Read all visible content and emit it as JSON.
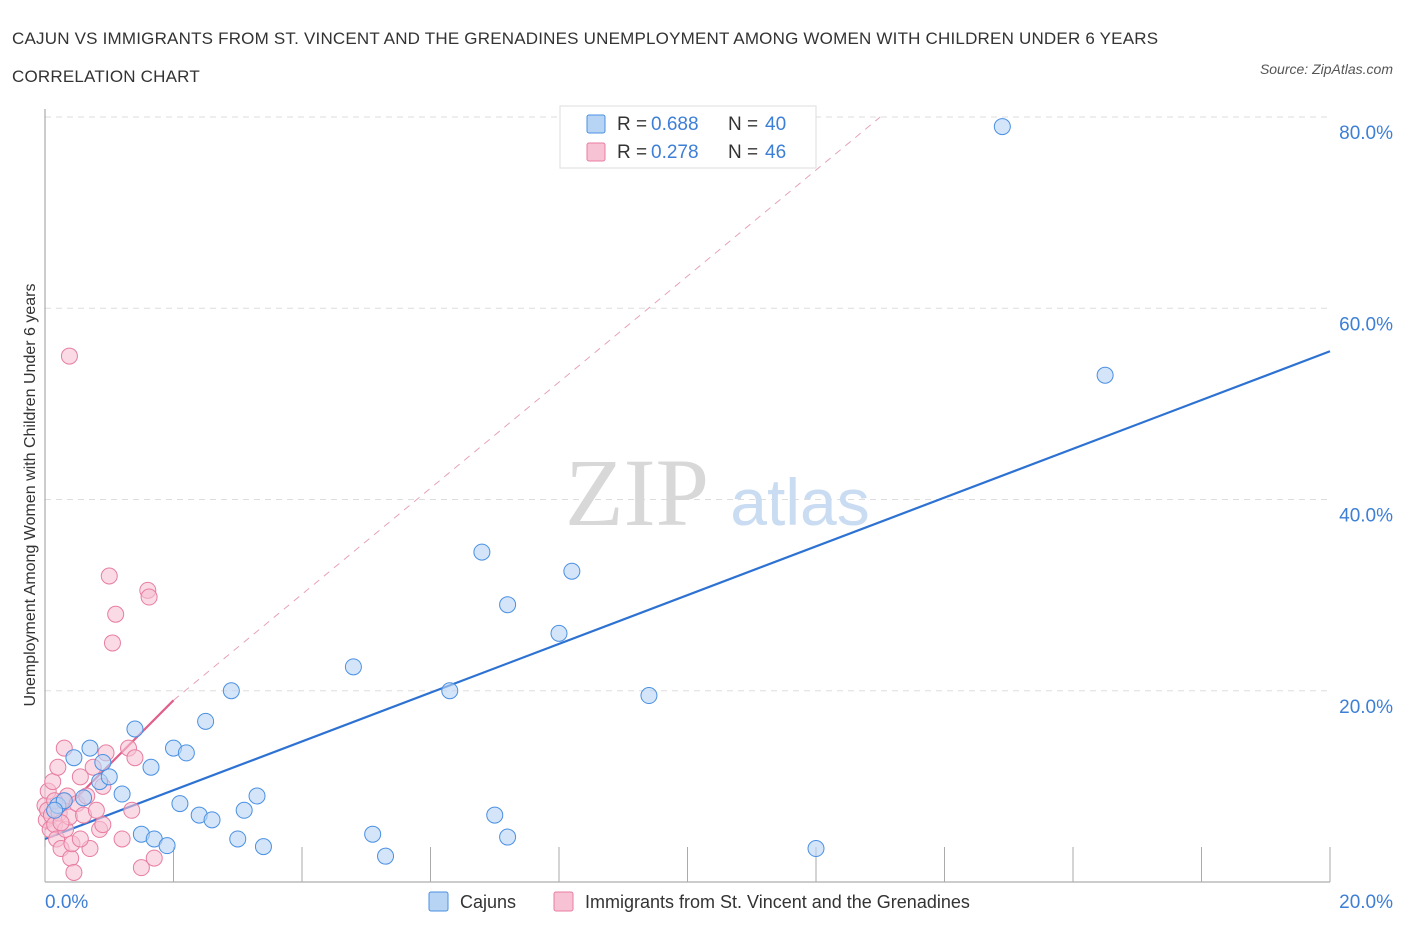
{
  "title": "CAJUN VS IMMIGRANTS FROM ST. VINCENT AND THE GRENADINES UNEMPLOYMENT AMONG WOMEN WITH CHILDREN UNDER 6 YEARS CORRELATION CHART",
  "source": "Source: ZipAtlas.com",
  "watermark": {
    "zip": "ZIP",
    "atlas": "atlas"
  },
  "colors": {
    "blue": "#4a90e2",
    "blue_fill": "#b8d4f5",
    "blue_line": "#2d72d2",
    "pink": "#e87da0",
    "pink_fill": "#f7c2d3",
    "pink_line": "#e0608a",
    "grid": "#dddddd",
    "axis_text": "#3d7fd6"
  },
  "legend": {
    "r_label": "R =",
    "n_label": "N =",
    "rows": [
      {
        "r": "0.688",
        "n": "40"
      },
      {
        "r": "0.278",
        "n": "46"
      }
    ]
  },
  "chart_data": {
    "type": "scatter",
    "title": "CAJUN VS IMMIGRANTS FROM ST. VINCENT AND THE GRENADINES UNEMPLOYMENT AMONG WOMEN WITH CHILDREN UNDER 6 YEARS CORRELATION CHART",
    "xlabel": "",
    "ylabel": "Unemployment Among Women with Children Under 6 years",
    "xlim": [
      0,
      20
    ],
    "ylim": [
      0,
      80
    ],
    "x_tick_labels": [
      "0.0%",
      "20.0%"
    ],
    "y_tick_labels": [
      "20.0%",
      "40.0%",
      "60.0%",
      "80.0%"
    ],
    "y_ticks": [
      20,
      40,
      60,
      80
    ],
    "legend_position": "bottom",
    "series": [
      {
        "name": "Cajuns",
        "color": "#4a90e2",
        "points": [
          [
            0.2,
            8.0
          ],
          [
            0.3,
            8.5
          ],
          [
            0.45,
            13.0
          ],
          [
            0.6,
            8.8
          ],
          [
            0.7,
            14.0
          ],
          [
            0.85,
            10.5
          ],
          [
            1.0,
            11.0
          ],
          [
            1.2,
            9.2
          ],
          [
            1.4,
            16.0
          ],
          [
            1.5,
            5.0
          ],
          [
            1.65,
            12.0
          ],
          [
            1.7,
            4.5
          ],
          [
            1.9,
            3.8
          ],
          [
            2.0,
            14.0
          ],
          [
            2.1,
            8.2
          ],
          [
            2.2,
            13.5
          ],
          [
            2.4,
            7.0
          ],
          [
            2.5,
            16.8
          ],
          [
            2.6,
            6.5
          ],
          [
            2.9,
            20.0
          ],
          [
            3.0,
            4.5
          ],
          [
            3.1,
            7.5
          ],
          [
            3.3,
            9.0
          ],
          [
            3.4,
            3.7
          ],
          [
            4.8,
            22.5
          ],
          [
            5.1,
            5.0
          ],
          [
            5.3,
            2.7
          ],
          [
            6.3,
            20.0
          ],
          [
            6.8,
            34.5
          ],
          [
            7.0,
            7.0
          ],
          [
            7.2,
            29.0
          ],
          [
            7.2,
            4.7
          ],
          [
            8.0,
            26.0
          ],
          [
            8.2,
            32.5
          ],
          [
            9.4,
            19.5
          ],
          [
            12.0,
            3.5
          ],
          [
            14.9,
            79.0
          ],
          [
            16.5,
            53.0
          ],
          [
            0.15,
            7.5
          ],
          [
            0.9,
            12.5
          ]
        ]
      },
      {
        "name": "Immigrants from St. Vincent and the Grenadines",
        "color": "#e87da0",
        "points": [
          [
            0.0,
            8.0
          ],
          [
            0.02,
            6.5
          ],
          [
            0.04,
            7.5
          ],
          [
            0.05,
            9.5
          ],
          [
            0.08,
            5.5
          ],
          [
            0.1,
            7.0
          ],
          [
            0.12,
            10.5
          ],
          [
            0.15,
            6.0
          ],
          [
            0.18,
            4.5
          ],
          [
            0.2,
            12.0
          ],
          [
            0.22,
            7.2
          ],
          [
            0.25,
            3.5
          ],
          [
            0.28,
            8.5
          ],
          [
            0.3,
            14.0
          ],
          [
            0.32,
            5.5
          ],
          [
            0.35,
            9.0
          ],
          [
            0.38,
            6.8
          ],
          [
            0.4,
            2.5
          ],
          [
            0.42,
            4.0
          ],
          [
            0.45,
            1.0
          ],
          [
            0.5,
            8.2
          ],
          [
            0.55,
            11.0
          ],
          [
            0.6,
            7.0
          ],
          [
            0.65,
            9.0
          ],
          [
            0.7,
            3.5
          ],
          [
            0.75,
            12.0
          ],
          [
            0.8,
            7.5
          ],
          [
            0.85,
            5.5
          ],
          [
            0.9,
            6.0
          ],
          [
            0.95,
            13.5
          ],
          [
            1.0,
            32.0
          ],
          [
            1.05,
            25.0
          ],
          [
            1.1,
            28.0
          ],
          [
            1.2,
            4.5
          ],
          [
            1.3,
            14.0
          ],
          [
            1.35,
            7.5
          ],
          [
            1.4,
            13.0
          ],
          [
            1.5,
            1.5
          ],
          [
            1.6,
            30.5
          ],
          [
            1.62,
            29.8
          ],
          [
            1.7,
            2.5
          ],
          [
            0.38,
            55.0
          ],
          [
            0.15,
            8.5
          ],
          [
            0.25,
            6.2
          ],
          [
            0.55,
            4.5
          ],
          [
            0.9,
            10.0
          ]
        ]
      }
    ],
    "trendlines": [
      {
        "series": "Cajuns",
        "x": [
          0.0,
          20.0
        ],
        "y": [
          4.5,
          55.5
        ]
      },
      {
        "series": "Immigrants from St. Vincent and the Grenadines",
        "x": [
          0.0,
          2.0
        ],
        "y": [
          5.5,
          19.0
        ],
        "dashed_extension_to": [
          13.0,
          80.0
        ]
      }
    ]
  }
}
